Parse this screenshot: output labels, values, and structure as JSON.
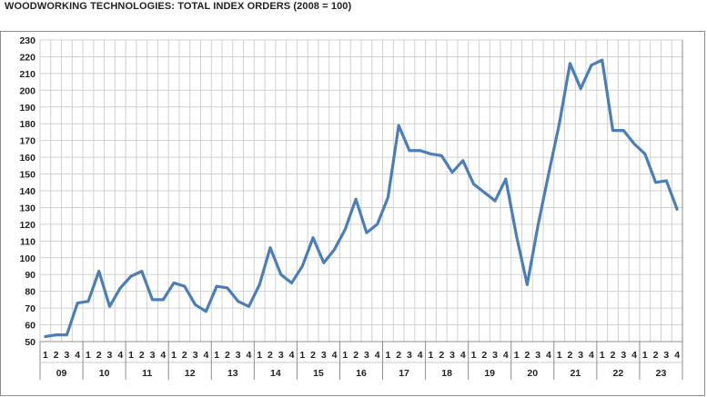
{
  "chart_data": {
    "type": "line",
    "title": "WOODWORKING TECHNOLOGIES: TOTAL INDEX ORDERS (2008 = 100)",
    "xlabel": "",
    "ylabel": "",
    "ylim": [
      50,
      230
    ],
    "ystep": 10,
    "grid": true,
    "legend": "none",
    "line_color": "#4A7EBB",
    "quarter_labels": [
      "1",
      "2",
      "3",
      "4"
    ],
    "years": [
      "09",
      "10",
      "11",
      "12",
      "13",
      "14",
      "15",
      "16",
      "17",
      "18",
      "19",
      "20",
      "21",
      "22",
      "23"
    ],
    "x": [
      "09-1",
      "09-2",
      "09-3",
      "09-4",
      "10-1",
      "10-2",
      "10-3",
      "10-4",
      "11-1",
      "11-2",
      "11-3",
      "11-4",
      "12-1",
      "12-2",
      "12-3",
      "12-4",
      "13-1",
      "13-2",
      "13-3",
      "13-4",
      "14-1",
      "14-2",
      "14-3",
      "14-4",
      "15-1",
      "15-2",
      "15-3",
      "15-4",
      "16-1",
      "16-2",
      "16-3",
      "16-4",
      "17-1",
      "17-2",
      "17-3",
      "17-4",
      "18-1",
      "18-2",
      "18-3",
      "18-4",
      "19-1",
      "19-2",
      "19-3",
      "19-4",
      "20-1",
      "20-2",
      "20-3",
      "20-4",
      "21-1",
      "21-2",
      "21-3",
      "21-4",
      "22-1",
      "22-2",
      "22-3",
      "22-4",
      "23-1",
      "23-2",
      "23-3",
      "23-4"
    ],
    "values": [
      53,
      54,
      54,
      73,
      74,
      92,
      71,
      82,
      89,
      92,
      75,
      75,
      85,
      83,
      72,
      68,
      83,
      82,
      74,
      71,
      84,
      106,
      90,
      85,
      95,
      112,
      97,
      105,
      117,
      135,
      115,
      120,
      136,
      179,
      164,
      164,
      162,
      161,
      151,
      158,
      144,
      139,
      134,
      147,
      113,
      84,
      119,
      150,
      180,
      216,
      201,
      215,
      218,
      176,
      176,
      168,
      162,
      145,
      146,
      129
    ]
  }
}
